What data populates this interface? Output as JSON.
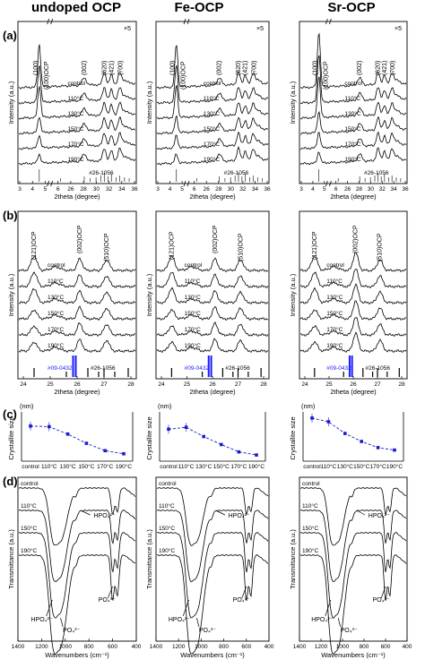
{
  "headers": [
    "undoped OCP",
    "Fe-OCP",
    "Sr-OCP"
  ],
  "panel_labels": [
    "(a)",
    "(b)",
    "(c)",
    "(d)"
  ],
  "row_a": {
    "xlabel": "2theta (degree)",
    "ylabel": "Intensity (a.u.)",
    "mult": "×5",
    "xticks": [
      "3",
      "4",
      "5",
      "6",
      "26",
      "28",
      "30",
      "32",
      "34",
      "36"
    ],
    "trace_labels": [
      "control",
      "110°C",
      "130°C",
      "150°C",
      "170°C",
      "190°C"
    ],
    "ref_label": "#26-1056",
    "peaks": [
      "(100)",
      "(100)OCP",
      "(002)",
      "(620)",
      "(421)",
      "(700)"
    ]
  },
  "row_b": {
    "xlabel": "2theta (degree)",
    "ylabel": "Intensity (a.u.)",
    "xticks": [
      "24",
      "25",
      "26",
      "27",
      "28"
    ],
    "trace_labels": [
      "control",
      "110°C",
      "130°C",
      "150°C",
      "170°C",
      "190°C"
    ],
    "ref_label_black": "#26-1056",
    "ref_label_blue": "#09-0432",
    "peaks": [
      "(121)OCP",
      "(002)OCP",
      "(510)OCP"
    ]
  },
  "row_c": {
    "ylabel": "Crystallite size",
    "unit": "(nm)",
    "yticks": [
      "0",
      "20",
      "40",
      "60",
      "80"
    ]
  },
  "row_d": {
    "xlabel": "Wavenumbers (cm⁻¹)",
    "ylabel": "Transmittance (a.u.)",
    "xticks": [
      "1400",
      "1200",
      "1000",
      "800",
      "600",
      "400"
    ],
    "trace_labels": [
      "control",
      "110°C",
      "150°C",
      "190°C"
    ],
    "band_hpo4": "HPO₄²⁻",
    "band_po4": "PO₄³⁻"
  },
  "colors": {
    "line": "#000000",
    "ref_blue": "#1a1aff",
    "size_series": "#1a1acc"
  },
  "chart_data": [
    {
      "type": "line",
      "title": "undoped OCP crystallite size",
      "categories": [
        "control",
        "110°C",
        "130°C",
        "150°C",
        "170°C",
        "190°C"
      ],
      "values": [
        57,
        56,
        44,
        29,
        17,
        12
      ],
      "ylabel": "Crystallite size (nm)",
      "ylim": [
        0,
        80
      ]
    },
    {
      "type": "line",
      "title": "Fe-OCP crystallite size",
      "categories": [
        "control",
        "110°C",
        "130°C",
        "150°C",
        "170°C",
        "190°C"
      ],
      "values": [
        52,
        55,
        40,
        27,
        15,
        10
      ],
      "ylabel": "Crystallite size (nm)",
      "ylim": [
        0,
        80
      ]
    },
    {
      "type": "line",
      "title": "Sr-OCP crystallite size",
      "categories": [
        "control",
        "110°C",
        "130°C",
        "150°C",
        "170°C",
        "190°C"
      ],
      "values": [
        70,
        64,
        45,
        32,
        22,
        18
      ],
      "ylabel": "Crystallite size (nm)",
      "ylim": [
        0,
        80
      ]
    }
  ]
}
